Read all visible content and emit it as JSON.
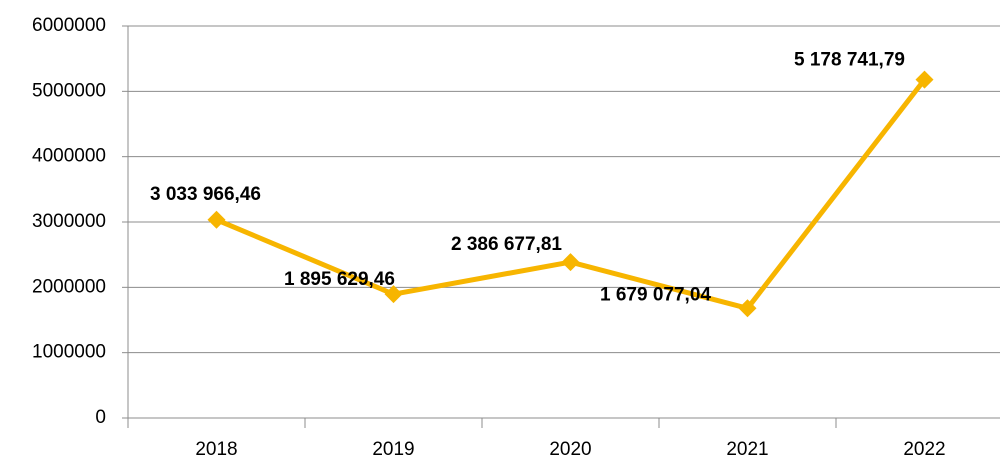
{
  "chart_data": {
    "type": "line",
    "categories": [
      "2018",
      "2019",
      "2020",
      "2021",
      "2022"
    ],
    "series": [
      {
        "color": "#f7b500",
        "values": [
          3033966.46,
          1895629.46,
          2386677.81,
          1679077.04,
          5178741.79
        ],
        "value_labels": [
          "3 033 966,46",
          "1 895 629,46",
          "2 386 677,81",
          "1 679 077,04",
          "5 178 741,79"
        ]
      }
    ],
    "ylim": [
      0,
      6000000
    ],
    "yticks": [
      0,
      1000000,
      2000000,
      3000000,
      4000000,
      5000000,
      6000000
    ],
    "grid": true
  }
}
